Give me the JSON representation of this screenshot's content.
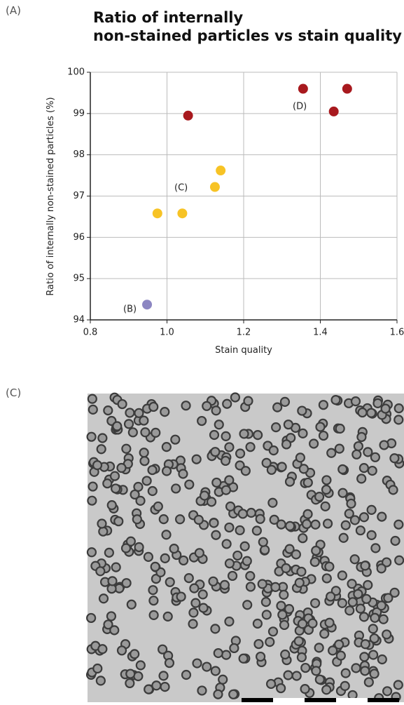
{
  "panel_labels": [
    "(A)",
    "(C)"
  ],
  "chart_data": {
    "type": "scatter",
    "title": "Ratio of internally non-stained particles vs stain quality",
    "x_label": "Stain quality",
    "y_label": "Ratio of internally non-stained particles (%)",
    "series": [
      {
        "color": "#8c86c2",
        "x": [
          0.948
        ],
        "values": [
          94.37
        ]
      },
      {
        "color": "#f7c325",
        "x": [
          0.975,
          1.04,
          1.125,
          1.14
        ],
        "values": [
          96.58,
          96.58,
          97.22,
          97.62
        ]
      },
      {
        "color": "#a8191e",
        "x": [
          1.055,
          1.355,
          1.435,
          1.47
        ],
        "values": [
          98.95,
          99.6,
          99.05,
          99.6
        ]
      }
    ],
    "annotations": [
      "(B)",
      "(C)",
      "(D)"
    ],
    "xlim": [
      0.8,
      1.6
    ],
    "xticks": [
      0.8,
      {
        "value": 1,
        "label": "1.0"
      },
      1.2,
      1.4,
      1.6
    ],
    "ylim": [
      94,
      100
    ],
    "yticks": [
      94,
      95,
      96,
      97,
      98,
      99,
      100
    ],
    "grid": true
  }
}
